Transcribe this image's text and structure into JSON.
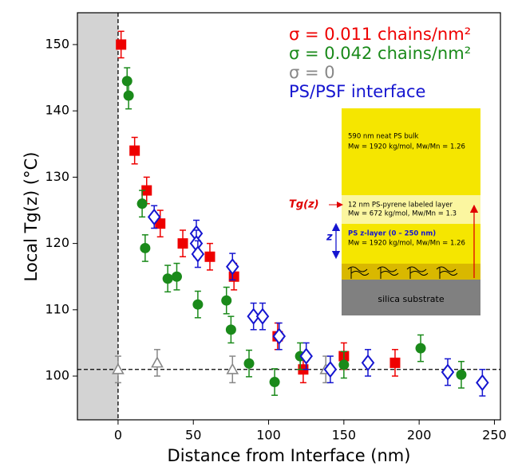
{
  "chart_data": {
    "type": "scatter",
    "x_label": "Distance from Interface  (nm)",
    "y_label": "Local Tg(z)  (°C)",
    "xlim": [
      -27,
      254
    ],
    "ylim": [
      93.4,
      154.8
    ],
    "xticks": [
      0,
      50,
      100,
      150,
      200,
      250
    ],
    "yticks": [
      100,
      110,
      120,
      130,
      140,
      150
    ],
    "reference_line": 101,
    "interface_x": 0,
    "series": [
      {
        "name": "σ = 0.011 chains/nm²",
        "color": "#ee0000",
        "marker": "square",
        "x": [
          2,
          11,
          19,
          28,
          43,
          61,
          77,
          106,
          123,
          150,
          184
        ],
        "values": [
          150,
          134,
          128,
          123,
          120,
          118,
          115,
          106,
          101,
          103,
          102
        ],
        "errors": [
          2,
          2,
          2,
          2,
          2,
          2,
          2,
          2,
          2,
          2,
          2
        ]
      },
      {
        "name": "σ = 0.042 chains/nm²",
        "color": "#1a8a1a",
        "marker": "circle",
        "x": [
          6,
          7,
          16,
          18,
          33,
          39,
          53,
          72,
          75,
          87,
          104,
          121,
          150,
          201,
          228
        ],
        "values": [
          144.5,
          142.3,
          126,
          119.3,
          114.7,
          115,
          110.8,
          111.4,
          107,
          101.9,
          99.1,
          103,
          101.7,
          104.2,
          100.2
        ],
        "errors": [
          2,
          2,
          2,
          2,
          2,
          2,
          2,
          2,
          2,
          2,
          2,
          2,
          2,
          2,
          2
        ]
      },
      {
        "name": "σ = 0",
        "color": "#888888",
        "marker": "triangle",
        "x": [
          0,
          26,
          76,
          138
        ],
        "values": [
          101,
          102,
          101,
          101
        ],
        "errors": [
          2,
          2,
          2,
          2
        ]
      },
      {
        "name": "PS/PSF interface",
        "color": "#1515d0",
        "marker": "diamond",
        "x": [
          24,
          52,
          52,
          53,
          76,
          90,
          96,
          107,
          125,
          141,
          166,
          219,
          242
        ],
        "values": [
          124,
          121.5,
          120,
          118.4,
          116.5,
          109,
          109,
          106,
          103,
          101,
          102,
          100.6,
          99
        ],
        "errors": [
          1.7,
          2,
          2,
          2,
          2,
          2,
          2,
          2,
          2,
          2,
          2,
          2,
          2
        ]
      }
    ],
    "inset": {
      "bulk_label": "590 nm neat PS bulk",
      "bulk_props": "Mw = 1920 kg/mol, Mw/Mn = 1.26",
      "pyrene_label": "12 nm PS-pyrene labeled layer",
      "pyrene_props": "Mw = 672 kg/mol, Mw/Mn = 1.3",
      "tg_label": "Tg(z)",
      "z_label": "z",
      "zlayer_label": "PS z-layer  (0 – 250 nm)",
      "zlayer_props": "Mw = 1920 kg/mol, Mw/Mn = 1.26",
      "substrate_label": "silica substrate"
    }
  }
}
